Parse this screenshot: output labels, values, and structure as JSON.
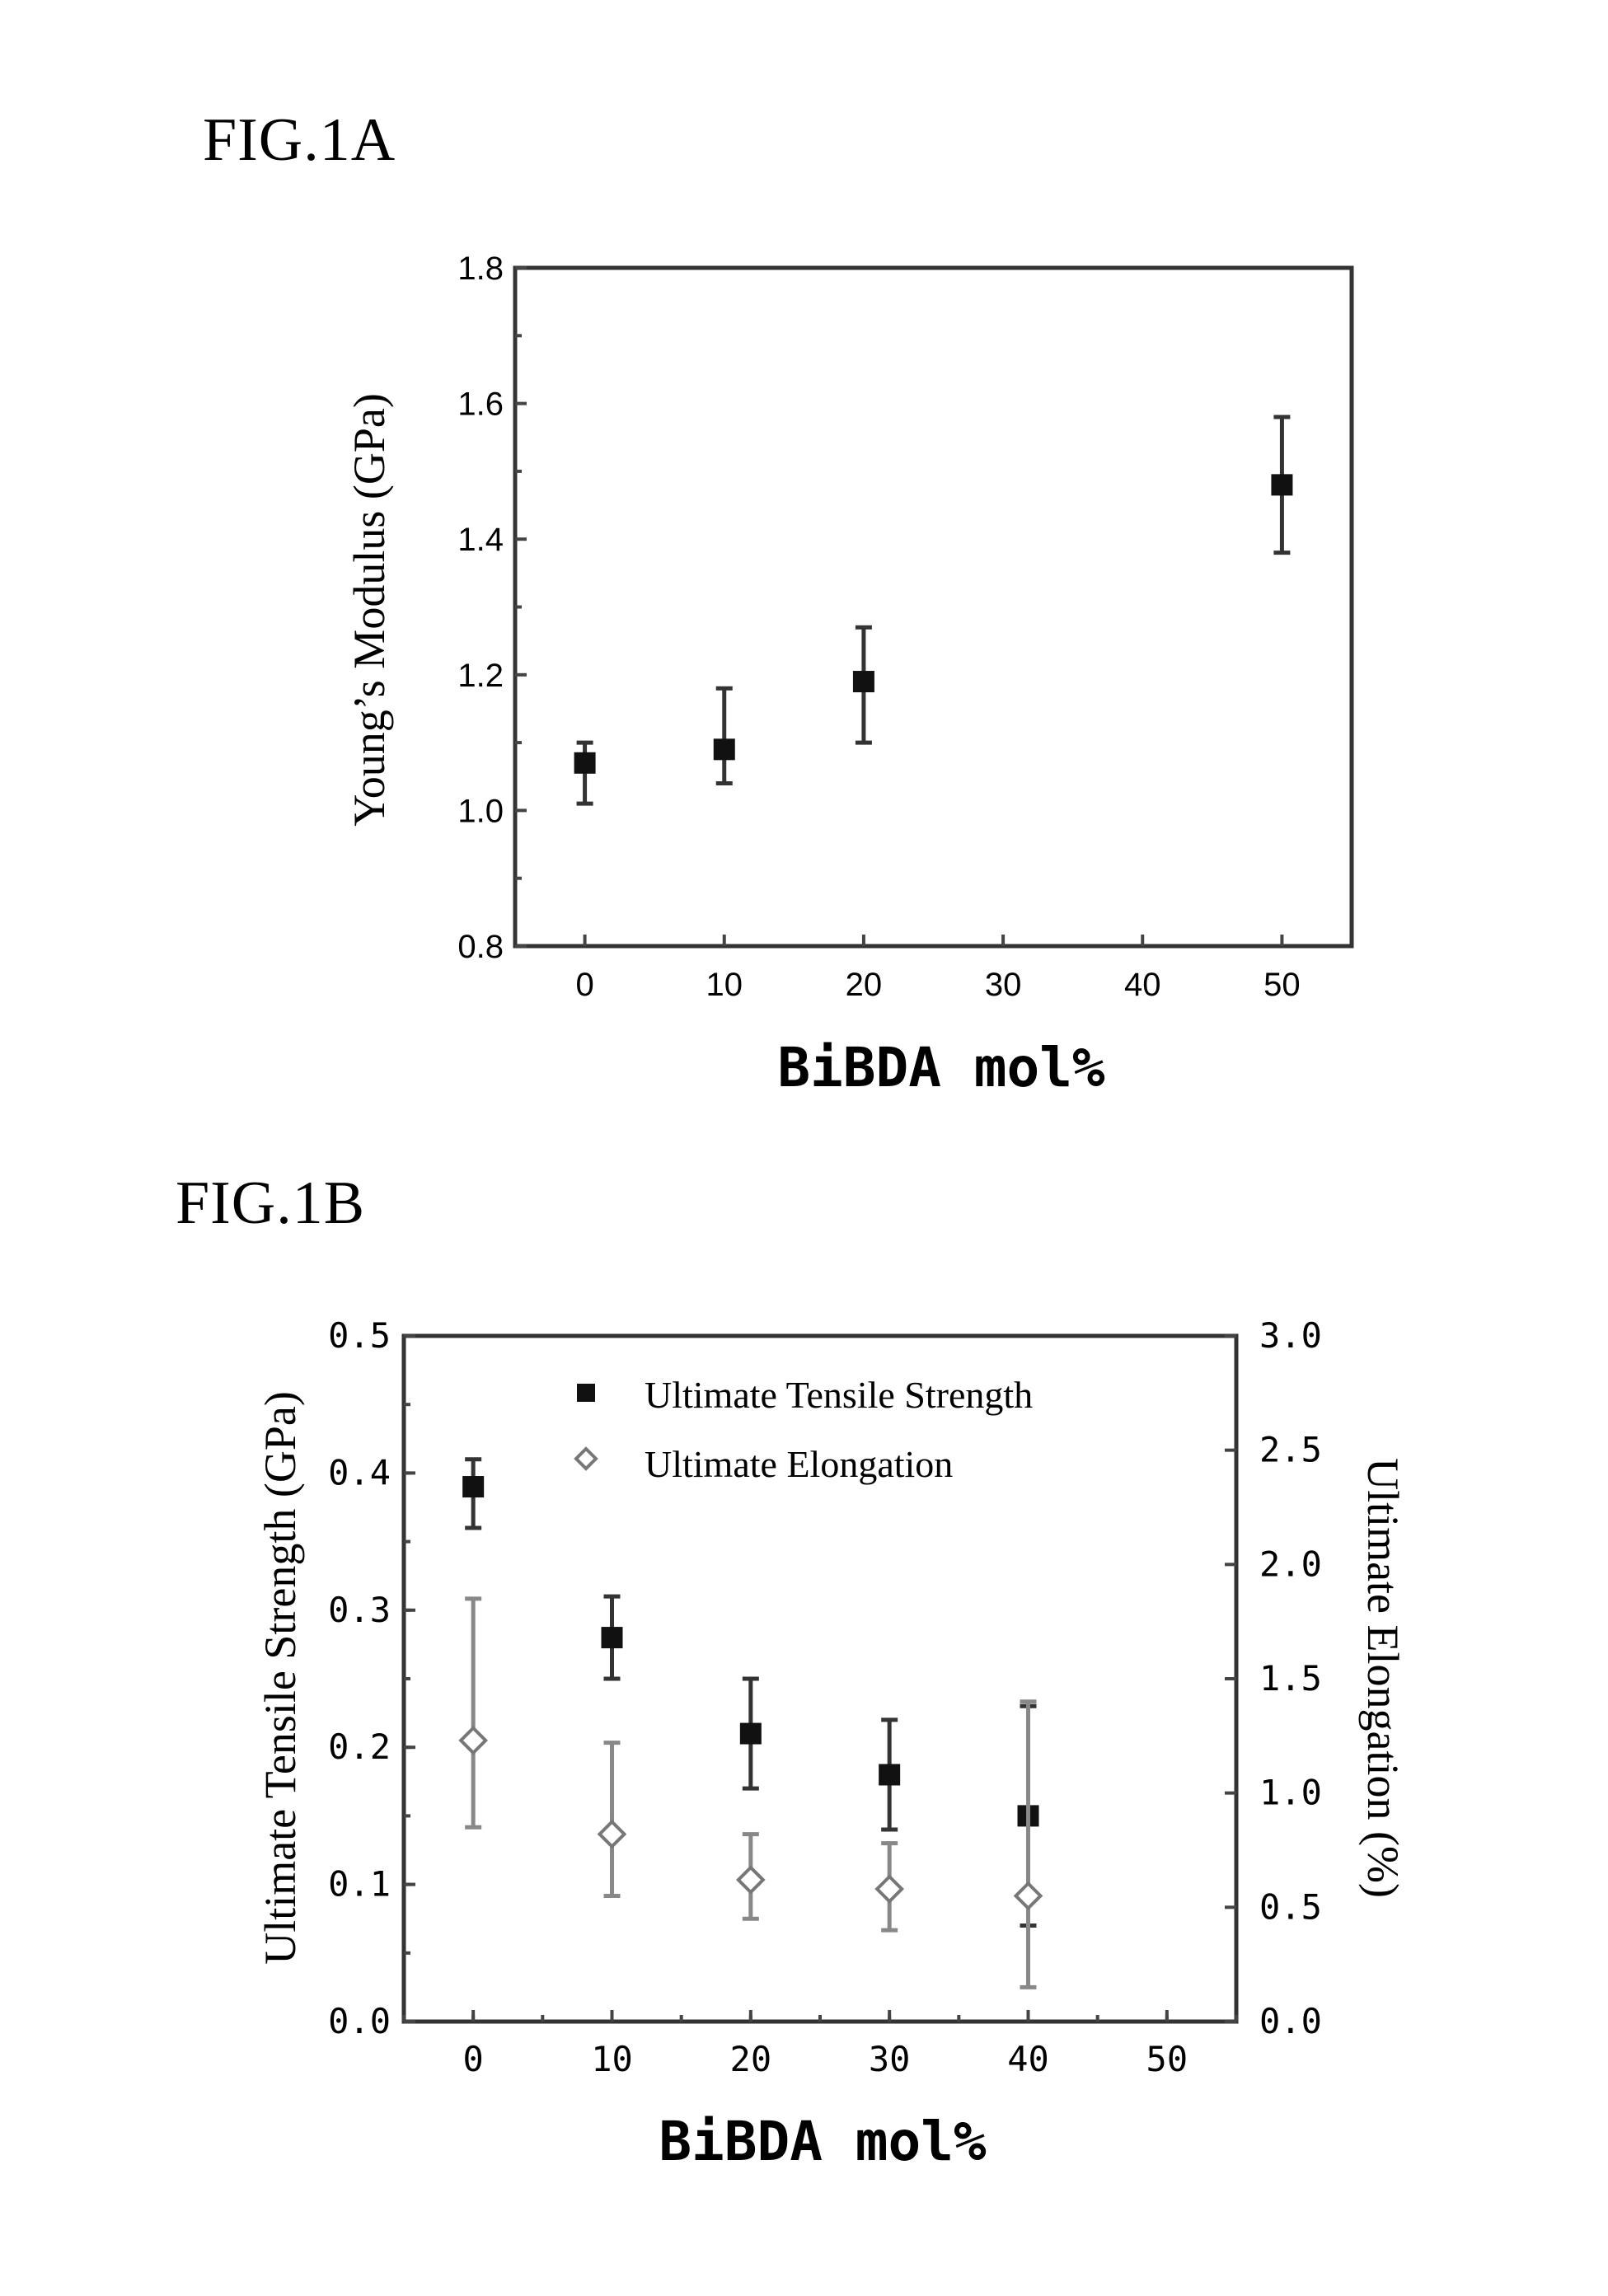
{
  "figures": {
    "fig1a_title": "FIG.1A",
    "fig1b_title": "FIG.1B"
  },
  "chart_data": [
    {
      "type": "scatter",
      "title": "FIG.1A",
      "xlabel": "BiBDA mol%",
      "ylabel": "Young’s Modulus (GPa)",
      "xlim": [
        -5,
        55
      ],
      "ylim": [
        0.8,
        1.8
      ],
      "xticks": [
        "0",
        "10",
        "20",
        "30",
        "40",
        "50"
      ],
      "xtick_values": [
        0,
        10,
        20,
        30,
        40,
        50
      ],
      "yticks": [
        "0.8",
        "1.0",
        "1.2",
        "1.4",
        "1.6",
        "1.8"
      ],
      "ytick_values": [
        0.8,
        1.0,
        1.2,
        1.4,
        1.6,
        1.8
      ],
      "series": [
        {
          "marker": "filled",
          "x": [
            0,
            10,
            20,
            50
          ],
          "y": [
            1.07,
            1.09,
            1.19,
            1.48
          ],
          "err_low": [
            1.01,
            1.04,
            1.1,
            1.38
          ],
          "err_high": [
            1.1,
            1.18,
            1.27,
            1.58
          ]
        }
      ]
    },
    {
      "type": "scatter",
      "title": "FIG.1B",
      "xlabel": "BiBDA mol%",
      "ylabel": "Ultimate Tensile Strength (GPa)",
      "y2label": "Ultimate Elongation (%)",
      "xlim": [
        -5,
        55
      ],
      "ylim": [
        0.0,
        0.5
      ],
      "y2lim": [
        0.0,
        3.0
      ],
      "xticks": [
        "0",
        "10",
        "20",
        "30",
        "40",
        "50"
      ],
      "xtick_values": [
        0,
        10,
        20,
        30,
        40,
        50
      ],
      "yticks": [
        "0.0",
        "0.1",
        "0.2",
        "0.3",
        "0.4",
        "0.5"
      ],
      "ytick_values": [
        0.0,
        0.1,
        0.2,
        0.3,
        0.4,
        0.5
      ],
      "y2ticks": [
        "0.0",
        "0.5",
        "1.0",
        "1.5",
        "2.0",
        "2.5",
        "3.0"
      ],
      "y2tick_values": [
        0.0,
        0.5,
        1.0,
        1.5,
        2.0,
        2.5,
        3.0
      ],
      "legend": "top-center",
      "series": [
        {
          "name": "Ultimate Tensile Strength",
          "marker": "filled",
          "axis": "left",
          "x": [
            0,
            10,
            20,
            30,
            40
          ],
          "y": [
            0.39,
            0.28,
            0.21,
            0.18,
            0.15
          ],
          "err_low": [
            0.36,
            0.25,
            0.17,
            0.14,
            0.07
          ],
          "err_high": [
            0.41,
            0.31,
            0.25,
            0.22,
            0.23
          ]
        },
        {
          "name": "Ultimate Elongation",
          "marker": "open",
          "axis": "right",
          "x": [
            0,
            10,
            20,
            30,
            40
          ],
          "y": [
            1.23,
            0.82,
            0.62,
            0.58,
            0.55
          ],
          "err_low": [
            0.85,
            0.55,
            0.45,
            0.4,
            0.15
          ],
          "err_high": [
            1.85,
            1.22,
            0.82,
            0.78,
            1.4
          ]
        }
      ]
    }
  ]
}
